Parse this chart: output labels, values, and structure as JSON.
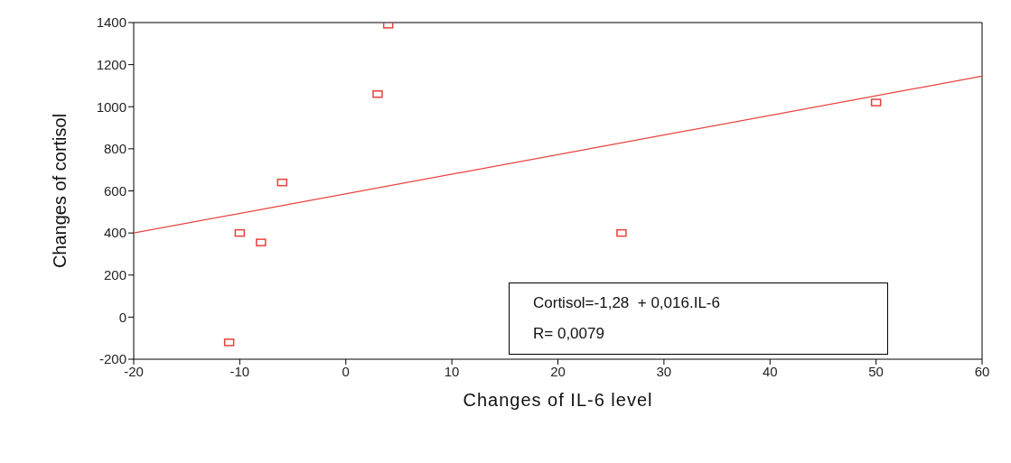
{
  "chart_data": {
    "type": "scatter",
    "xlabel": "Changes of  IL-6  level",
    "ylabel": "Changes of cortisol",
    "xlim": [
      -20,
      60
    ],
    "xticks": [
      -20,
      -10,
      0,
      10,
      20,
      30,
      40,
      50,
      60
    ],
    "ylim": [
      -200,
      1400
    ],
    "yticks": [
      -200,
      0,
      200,
      400,
      600,
      800,
      1000,
      1200,
      1400
    ],
    "grid": false,
    "series": [
      {
        "color": "#e8413c",
        "marker": "square",
        "x": [
          4,
          3,
          50,
          -6,
          -10,
          -8,
          26,
          -11
        ],
        "values": [
          1390,
          1060,
          1020,
          640,
          400,
          355,
          400,
          -120
        ]
      },
      {
        "type": "line",
        "color": "#e8413c",
        "x": [
          -20,
          60
        ],
        "values": [
          400,
          1145
        ]
      }
    ],
    "annotations": [
      "Cortisol=-1,28  + 0,016.IL-6",
      "R= 0,0079"
    ]
  }
}
